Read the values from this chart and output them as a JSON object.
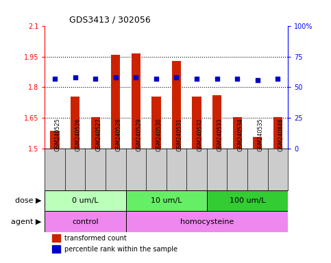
{
  "title": "GDS3413 / 302056",
  "samples": [
    "GSM240525",
    "GSM240526",
    "GSM240527",
    "GSM240528",
    "GSM240529",
    "GSM240530",
    "GSM240531",
    "GSM240532",
    "GSM240533",
    "GSM240534",
    "GSM240535",
    "GSM240848"
  ],
  "transformed_count": [
    1.585,
    1.755,
    1.655,
    1.96,
    1.965,
    1.755,
    1.93,
    1.755,
    1.76,
    1.655,
    1.555,
    1.655
  ],
  "percentile_rank": [
    57,
    58,
    57,
    58,
    58,
    57,
    58,
    57,
    57,
    57,
    56,
    57
  ],
  "bar_color": "#cc2200",
  "dot_color": "#0000cc",
  "ylim_left": [
    1.5,
    2.1
  ],
  "ylim_right": [
    0,
    100
  ],
  "yticks_left": [
    1.5,
    1.65,
    1.8,
    1.95,
    2.1
  ],
  "yticks_left_labels": [
    "1.5",
    "1.65",
    "1.8",
    "1.95",
    "2.1"
  ],
  "yticks_right": [
    0,
    25,
    50,
    75,
    100
  ],
  "yticks_right_labels": [
    "0",
    "25",
    "50",
    "75",
    "100%"
  ],
  "hlines": [
    1.65,
    1.8,
    1.95
  ],
  "dose_groups": [
    {
      "label": "0 um/L",
      "start": 0,
      "end": 4,
      "color": "#bbffbb"
    },
    {
      "label": "10 um/L",
      "start": 4,
      "end": 8,
      "color": "#66ee66"
    },
    {
      "label": "100 um/L",
      "start": 8,
      "end": 12,
      "color": "#33cc33"
    }
  ],
  "agent_control": {
    "label": "control",
    "start": 0,
    "end": 4,
    "color": "#ee88ee"
  },
  "agent_homo": {
    "label": "homocysteine",
    "start": 4,
    "end": 12,
    "color": "#ee88ee"
  },
  "dose_label": "dose",
  "agent_label": "agent",
  "legend_items": [
    {
      "color": "#cc2200",
      "label": "transformed count",
      "marker": "s"
    },
    {
      "color": "#0000cc",
      "label": "percentile rank within the sample",
      "marker": "s"
    }
  ],
  "background_color": "#ffffff",
  "tick_label_bg": "#cccccc",
  "baseline": 1.5
}
